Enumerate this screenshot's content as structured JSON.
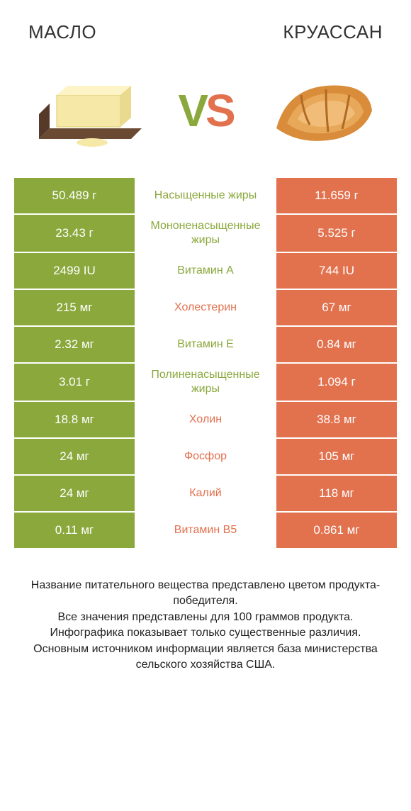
{
  "colors": {
    "green": "#8aa83c",
    "orange": "#e2714e",
    "green_text": "#8aa83c",
    "orange_text": "#e2714e"
  },
  "header": {
    "left": "МАСЛО",
    "right": "КРУАССАН"
  },
  "vs": {
    "v": "V",
    "s": "S"
  },
  "rows": [
    {
      "left": "50.489 г",
      "mid": "Насыщенные жиры",
      "right": "11.659 г",
      "winner": "left"
    },
    {
      "left": "23.43 г",
      "mid": "Мононенасыщенные жиры",
      "right": "5.525 г",
      "winner": "left"
    },
    {
      "left": "2499 IU",
      "mid": "Витамин A",
      "right": "744 IU",
      "winner": "left"
    },
    {
      "left": "215 мг",
      "mid": "Холестерин",
      "right": "67 мг",
      "winner": "right"
    },
    {
      "left": "2.32 мг",
      "mid": "Витамин E",
      "right": "0.84 мг",
      "winner": "left"
    },
    {
      "left": "3.01 г",
      "mid": "Полиненасыщенные жиры",
      "right": "1.094 г",
      "winner": "left"
    },
    {
      "left": "18.8 мг",
      "mid": "Холин",
      "right": "38.8 мг",
      "winner": "right"
    },
    {
      "left": "24 мг",
      "mid": "Фосфор",
      "right": "105 мг",
      "winner": "right"
    },
    {
      "left": "24 мг",
      "mid": "Калий",
      "right": "118 мг",
      "winner": "right"
    },
    {
      "left": "0.11 мг",
      "mid": "Витамин B5",
      "right": "0.861 мг",
      "winner": "right"
    }
  ],
  "footer": {
    "l1": "Название питательного вещества представлено цветом продукта-победителя.",
    "l2": "Все значения представлены для 100 граммов продукта.",
    "l3": "Инфографика показывает только существенные различия.",
    "l4": "Основным источником информации является база министерства сельского хозяйства США."
  }
}
